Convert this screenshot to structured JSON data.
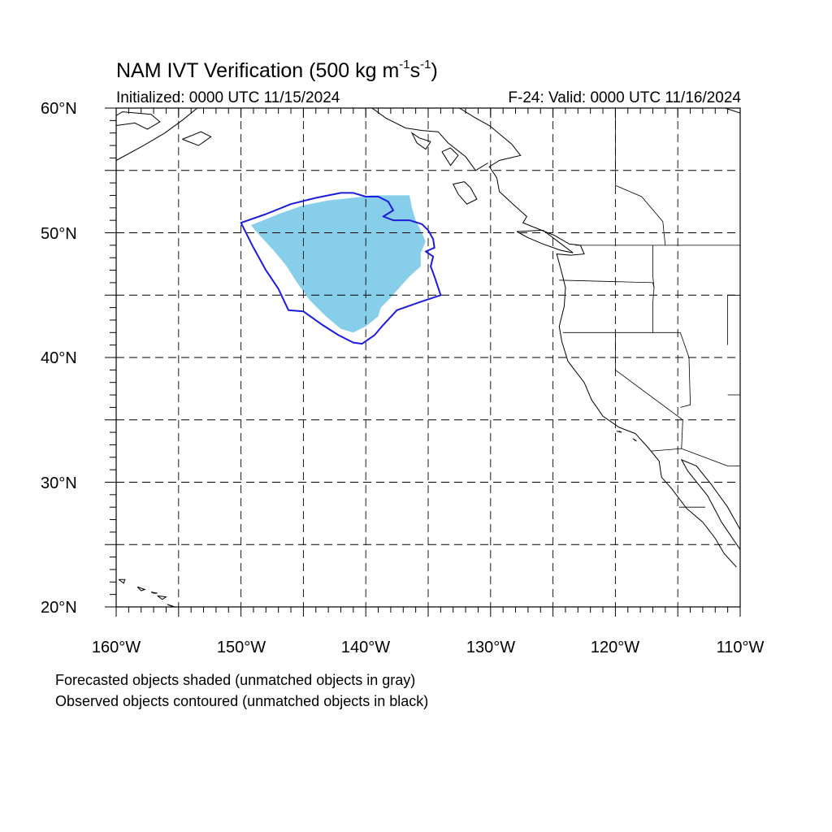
{
  "title_main": "NAM IVT Verification (500 kg m",
  "title_exp1": "-1",
  "title_mid": "s",
  "title_exp2": "-1",
  "title_end": ")",
  "initialized": "Initialized: 0000 UTC 11/15/2024",
  "valid": "F-24: Valid: 0000 UTC 11/16/2024",
  "lat_labels": [
    "60°N",
    "50°N",
    "40°N",
    "30°N",
    "20°N"
  ],
  "lon_labels": [
    "160°W",
    "150°W",
    "140°W",
    "130°W",
    "120°W",
    "110°W"
  ],
  "legend": [
    "Forecasted objects shaded (unmatched objects in gray)",
    "Observed objects contoured (unmatched objects in black)"
  ],
  "colors": {
    "forecast_fill": "#87ceeb",
    "observed_contour": "#1c1cdc",
    "coastline": "#000000",
    "grid": "#000000"
  },
  "map_extent": {
    "lon_min": -160,
    "lon_max": -110,
    "lat_min": 20,
    "lat_max": 60
  },
  "forecast_object": [
    [
      -147,
      51.5
    ],
    [
      -145,
      52.2
    ],
    [
      -143,
      52.6
    ],
    [
      -141,
      52.8
    ],
    [
      -139.5,
      53
    ],
    [
      -138,
      53
    ],
    [
      -136.5,
      53
    ],
    [
      -136.3,
      52
    ],
    [
      -136,
      51
    ],
    [
      -135.5,
      50
    ],
    [
      -135.2,
      49.3
    ],
    [
      -135.6,
      48.4
    ],
    [
      -135.6,
      47.3
    ],
    [
      -136.5,
      46.5
    ],
    [
      -137.4,
      45.5
    ],
    [
      -138,
      44.8
    ],
    [
      -138.8,
      44
    ],
    [
      -139,
      43.3
    ],
    [
      -140,
      42.5
    ],
    [
      -141,
      42
    ],
    [
      -142,
      42.3
    ],
    [
      -143.2,
      43.3
    ],
    [
      -144.5,
      44.6
    ],
    [
      -145.5,
      46
    ],
    [
      -146.4,
      47.4
    ],
    [
      -147.4,
      48.6
    ],
    [
      -148.5,
      49.8
    ],
    [
      -149.2,
      50.6
    ]
  ],
  "observed_object": [
    [
      -150,
      50.8
    ],
    [
      -148,
      51.5
    ],
    [
      -146,
      52.3
    ],
    [
      -144,
      52.8
    ],
    [
      -142,
      53.2
    ],
    [
      -141,
      53.2
    ],
    [
      -140,
      52.9
    ],
    [
      -139,
      52.9
    ],
    [
      -138.2,
      52.5
    ],
    [
      -137.8,
      51.8
    ],
    [
      -138.6,
      51.3
    ],
    [
      -137.8,
      51
    ],
    [
      -136.5,
      51
    ],
    [
      -135.5,
      50.7
    ],
    [
      -135,
      50.2
    ],
    [
      -134.6,
      49.5
    ],
    [
      -134.5,
      48.8
    ],
    [
      -135.2,
      48.5
    ],
    [
      -134.6,
      48.1
    ],
    [
      -134.8,
      47.3
    ],
    [
      -134.5,
      46.5
    ],
    [
      -134,
      45
    ],
    [
      -135.5,
      44.5
    ],
    [
      -137.5,
      43.8
    ],
    [
      -138.7,
      42.5
    ],
    [
      -139.3,
      41.8
    ],
    [
      -140.3,
      41.1
    ],
    [
      -141,
      41.2
    ],
    [
      -142.2,
      41.8
    ],
    [
      -143.6,
      42.7
    ],
    [
      -145,
      43.7
    ],
    [
      -146.2,
      43.8
    ],
    [
      -147,
      45.5
    ],
    [
      -148,
      47
    ],
    [
      -149,
      48.8
    ]
  ],
  "coastlines": [
    [
      [
        -132.5,
        60
      ],
      [
        -131.2,
        59.2
      ],
      [
        -130.1,
        58.6
      ],
      [
        -128.3,
        57.1
      ],
      [
        -127.6,
        56.2
      ],
      [
        -129.3,
        55.8
      ],
      [
        -130.1,
        55.3
      ],
      [
        -129.5,
        54.4
      ],
      [
        -129.3,
        53.3
      ],
      [
        -128.1,
        52.2
      ],
      [
        -127.1,
        51.3
      ],
      [
        -127.4,
        50.8
      ],
      [
        -124.9,
        49.8
      ],
      [
        -123.7,
        49.1
      ],
      [
        -122.8,
        49
      ],
      [
        -122.5,
        48.3
      ],
      [
        -123.6,
        48.2
      ],
      [
        -124.7,
        48.3
      ],
      [
        -124.3,
        46.8
      ],
      [
        -124,
        45.6
      ],
      [
        -124.1,
        44.1
      ],
      [
        -124.5,
        42.5
      ],
      [
        -124.3,
        41.3
      ],
      [
        -123.8,
        39.7
      ],
      [
        -122.5,
        38
      ],
      [
        -121.9,
        36.6
      ],
      [
        -121,
        35.3
      ],
      [
        -119.7,
        34.4
      ],
      [
        -118.4,
        33.9
      ],
      [
        -117.4,
        32.8
      ],
      [
        -116.5,
        31.7
      ],
      [
        -116.3,
        30.4
      ],
      [
        -115.5,
        29.5
      ],
      [
        -114.3,
        27.9
      ],
      [
        -113,
        26.8
      ],
      [
        -112,
        25.5
      ],
      [
        -111.3,
        24.3
      ],
      [
        -110.3,
        23.2
      ]
    ],
    [
      [
        -110,
        24.6
      ],
      [
        -111.5,
        26.8
      ],
      [
        -112.6,
        28.9
      ],
      [
        -114.2,
        30.9
      ],
      [
        -114.7,
        31.8
      ],
      [
        -113.5,
        31.3
      ],
      [
        -112.3,
        29.8
      ],
      [
        -111,
        28
      ],
      [
        -110,
        26.2
      ]
    ],
    [
      [
        -127.9,
        50.1
      ],
      [
        -125.8,
        50.2
      ],
      [
        -124.6,
        49.3
      ],
      [
        -123.4,
        48.4
      ],
      [
        -124.4,
        48.6
      ],
      [
        -125.8,
        49.1
      ],
      [
        -127,
        49.6
      ],
      [
        -127.9,
        50.1
      ]
    ],
    [
      [
        -132.1,
        54.1
      ],
      [
        -131.6,
        53.6
      ],
      [
        -131.1,
        52.7
      ],
      [
        -131.9,
        52.3
      ],
      [
        -132.6,
        53.1
      ],
      [
        -133,
        53.9
      ],
      [
        -132.1,
        54.1
      ]
    ],
    [
      [
        -160,
        58.6
      ],
      [
        -158.5,
        58.8
      ],
      [
        -157.5,
        58.3
      ],
      [
        -156.5,
        58.9
      ],
      [
        -157.2,
        59.5
      ],
      [
        -159.5,
        59.7
      ],
      [
        -160,
        59.4
      ]
    ],
    [
      [
        -160,
        55.8
      ],
      [
        -157.8,
        57
      ],
      [
        -156.1,
        58
      ],
      [
        -154.6,
        59.1
      ],
      [
        -153.5,
        60
      ]
    ],
    [
      [
        -154.7,
        57.5
      ],
      [
        -153.2,
        58.1
      ],
      [
        -152.4,
        57.7
      ],
      [
        -153.4,
        57
      ],
      [
        -154.7,
        57.5
      ]
    ],
    [
      [
        -139.5,
        60
      ],
      [
        -138.4,
        59.2
      ],
      [
        -136.8,
        58.4
      ],
      [
        -135.5,
        58.2
      ],
      [
        -134.2,
        58.1
      ],
      [
        -133.4,
        57.2
      ],
      [
        -132,
        56.1
      ],
      [
        -131.2,
        55
      ],
      [
        -130.2,
        55.6
      ]
    ],
    [
      [
        -134.8,
        57.3
      ],
      [
        -135.7,
        57.6
      ],
      [
        -136.3,
        58
      ],
      [
        -135.9,
        57.2
      ],
      [
        -135.2,
        56.7
      ],
      [
        -134.8,
        57.3
      ]
    ],
    [
      [
        -133.9,
        56.5
      ],
      [
        -133.2,
        56.8
      ],
      [
        -132.6,
        56.2
      ],
      [
        -133.2,
        55.4
      ],
      [
        -133.9,
        56.5
      ]
    ],
    [
      [
        -110,
        59.6
      ],
      [
        -111.2,
        60
      ]
    ],
    [
      [
        -118.6,
        33.5
      ],
      [
        -118.3,
        33.3
      ],
      [
        -118.5,
        33.4
      ]
    ],
    [
      [
        -119.9,
        34.1
      ],
      [
        -119.5,
        34
      ],
      [
        -119.7,
        34.1
      ]
    ],
    [
      [
        -159.8,
        22.2
      ],
      [
        -159.3,
        22.2
      ],
      [
        -159.4,
        21.9
      ],
      [
        -159.8,
        22.2
      ]
    ],
    [
      [
        -158.3,
        21.6
      ],
      [
        -157.7,
        21.4
      ],
      [
        -158,
        21.3
      ],
      [
        -158.3,
        21.6
      ]
    ],
    [
      [
        -157.2,
        21.2
      ],
      [
        -156.7,
        21.1
      ],
      [
        -157,
        21.1
      ],
      [
        -157.2,
        21.2
      ]
    ],
    [
      [
        -156.7,
        20.9
      ],
      [
        -156,
        20.8
      ],
      [
        -156.3,
        20.6
      ],
      [
        -156.7,
        20.9
      ]
    ],
    [
      [
        -155.9,
        20.2
      ],
      [
        -155,
        19.9
      ],
      [
        -155.4,
        20
      ],
      [
        -155.9,
        20.2
      ]
    ]
  ],
  "borders": [
    [
      [
        -123.2,
        49
      ],
      [
        -110,
        49
      ]
    ],
    [
      [
        -124.2,
        42
      ],
      [
        -114.8,
        42
      ]
    ],
    [
      [
        -120,
        42
      ],
      [
        -120,
        39
      ],
      [
        -114.6,
        35
      ],
      [
        -114.7,
        32.7
      ]
    ],
    [
      [
        -124.5,
        46.2
      ],
      [
        -117,
        46
      ],
      [
        -116.9,
        45.6
      ]
    ],
    [
      [
        -117,
        49
      ],
      [
        -117,
        46.5
      ],
      [
        -116.9,
        45.6
      ],
      [
        -117,
        44.4
      ],
      [
        -117,
        42
      ]
    ],
    [
      [
        -114.8,
        42
      ],
      [
        -114.1,
        40
      ],
      [
        -114,
        36.2
      ],
      [
        -114.8,
        36
      ]
    ],
    [
      [
        -111,
        41
      ],
      [
        -111,
        45
      ],
      [
        -110,
        45
      ]
    ],
    [
      [
        -111,
        37
      ],
      [
        -110,
        37
      ]
    ],
    [
      [
        -117.1,
        32.5
      ],
      [
        -114.7,
        32.7
      ],
      [
        -111,
        31.3
      ],
      [
        -110,
        31.3
      ]
    ],
    [
      [
        -114.9,
        28
      ],
      [
        -112.8,
        28
      ]
    ],
    [
      [
        -116,
        49
      ],
      [
        -116.2,
        50.9
      ],
      [
        -117.9,
        52.9
      ],
      [
        -120,
        53.8
      ],
      [
        -120,
        60
      ]
    ]
  ]
}
